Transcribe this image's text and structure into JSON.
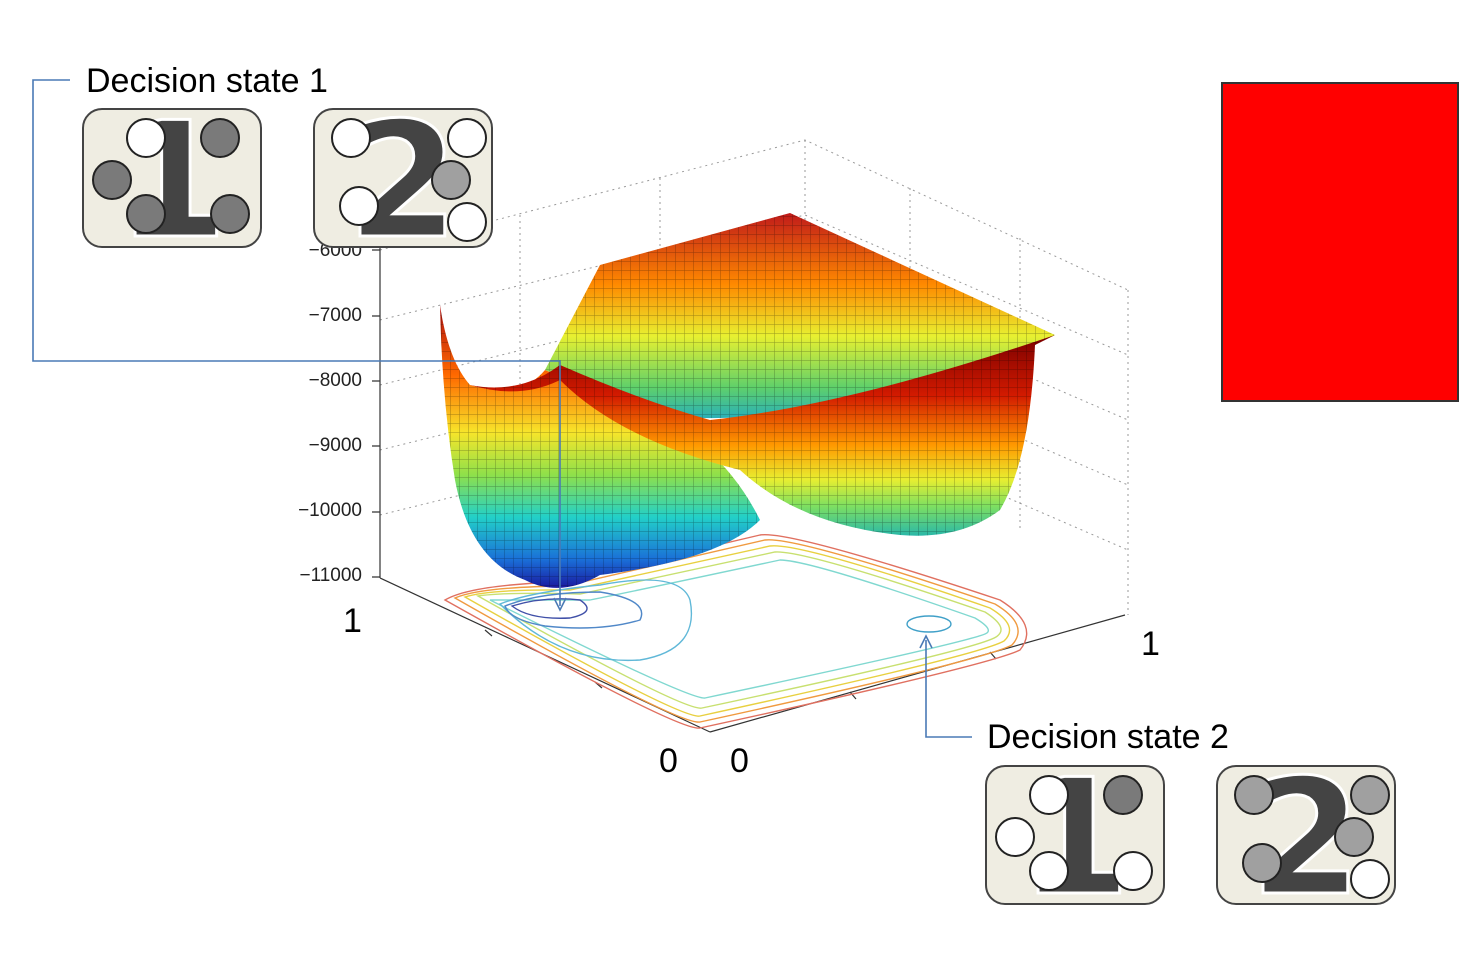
{
  "labels": {
    "decision_state_1": "Decision state 1",
    "decision_state_2": "Decision state 2"
  },
  "z_ticks": [
    "−6000",
    "−7000",
    "−8000",
    "−9000",
    "−10000",
    "−11000"
  ],
  "axis_numbers": {
    "left_one": "1",
    "left_zero": "0",
    "right_zero": "0",
    "right_one": "1"
  },
  "tiles": [
    {
      "digit": "1",
      "discs": [
        "white",
        "gray",
        "gray",
        "gray",
        "gray"
      ]
    },
    {
      "digit": "2",
      "discs": [
        "white",
        "white",
        "lightgray",
        "white",
        "white"
      ]
    },
    {
      "digit": "1",
      "discs": [
        "white",
        "gray",
        "white",
        "white",
        "white"
      ]
    },
    {
      "digit": "2",
      "discs": [
        "lightgray",
        "lightgray",
        "lightgray",
        "lightgray",
        "white"
      ]
    }
  ],
  "colors": {
    "connector": "#4a7ab5",
    "red_panel": "#ff0000",
    "tile_bg": "#efede2",
    "disc_white": "#ffffff",
    "disc_gray": "#7a7a7a",
    "disc_lightgray": "#a0a0a0"
  }
}
